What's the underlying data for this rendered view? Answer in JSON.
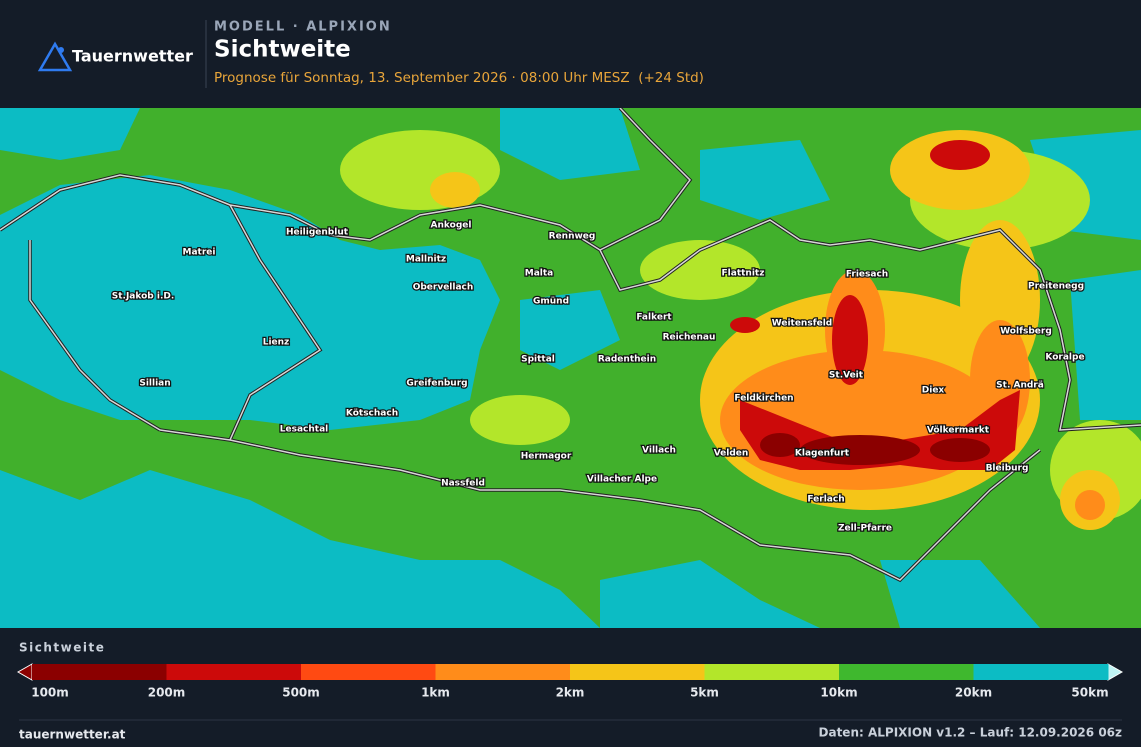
{
  "header": {
    "brand": "Tauernwetter",
    "kicker": "MODELL · ALPIXION",
    "title": "Sichtweite",
    "subtitle": "Prognose für Sonntag, 13. September 2026 · 08:00 Uhr MESZ  (+24 Std)"
  },
  "places": [
    "Matrei",
    "Heiligenblut",
    "Ankogel",
    "Rennweg",
    "Mallnitz",
    "Malta",
    "Flattnitz",
    "Friesach",
    "Preitenegg",
    "St.Jakob i.D.",
    "Obervellach",
    "Gmünd",
    "Falkert",
    "Weitensfeld",
    "Wolfsberg",
    "Reichenau",
    "Lienz",
    "Spittal",
    "Radenthein",
    "Koralpe",
    "St.Veit",
    "Sillian",
    "Greifenburg",
    "Diex",
    "St. Andrä",
    "Feldkirchen",
    "Kötschach",
    "Lesachtal",
    "Völkermarkt",
    "Villach",
    "Velden",
    "Klagenfurt",
    "Hermagor",
    "Bleiburg",
    "Nassfeld",
    "Villacher Alpe",
    "Ferlach",
    "Zell-Pfarre"
  ],
  "legend": {
    "title": "Sichtweite",
    "labels": [
      "100m",
      "200m",
      "500m",
      "1km",
      "2km",
      "5km",
      "10km",
      "20km",
      "50km"
    ],
    "colors": [
      "#8b0000",
      "#cc0a0a",
      "#ff4a12",
      "#ff8c1a",
      "#f5c518",
      "#b3e62a",
      "#3fb82e",
      "#0cbcc4"
    ]
  },
  "footer": {
    "site": "tauernwetter.at",
    "source": "Daten: ALPIXION v1.2 – Lauf: 12.09.2026 06z"
  }
}
